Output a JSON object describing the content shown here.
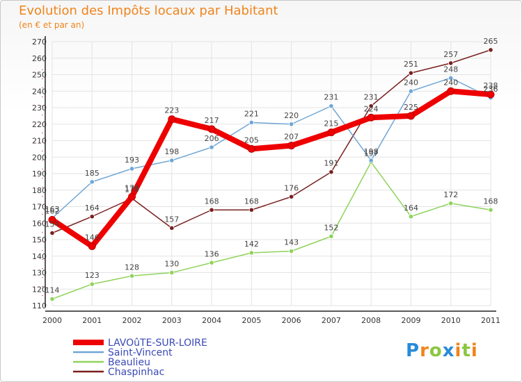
{
  "header": {
    "title": "Evolution des Impôts locaux par Habitant",
    "subtitle": "(en € et par an)"
  },
  "logo": {
    "text": "Proxiti",
    "letters": [
      "P",
      "r",
      "o",
      "x",
      "i",
      "t",
      "i"
    ],
    "colors": [
      "#2a8bd8",
      "#f0841c",
      "#8cc63f",
      "#2a8bd8",
      "#f0841c",
      "#8cc63f",
      "#f0841c"
    ]
  },
  "chart_data": {
    "type": "line",
    "title": "Evolution des Impôts locaux par Habitant",
    "subtitle": "(en € et par an)",
    "xlabel": "",
    "ylabel": "",
    "x": [
      "2000",
      "2001",
      "2002",
      "2003",
      "2004",
      "2005",
      "2006",
      "2007",
      "2008",
      "2009",
      "2010",
      "2011"
    ],
    "ylim": [
      110,
      270
    ],
    "yticks": [
      110,
      120,
      130,
      140,
      150,
      160,
      170,
      180,
      190,
      200,
      210,
      220,
      230,
      240,
      250,
      260,
      270
    ],
    "grid": true,
    "legend_position": "bottom-left",
    "series": [
      {
        "name": "Chaspinhac",
        "color": "#7a1f1f",
        "values": [
          154,
          164,
          175,
          157,
          168,
          168,
          176,
          191,
          231,
          251,
          257,
          265
        ]
      },
      {
        "name": "Beaulieu",
        "color": "#8fd35b",
        "values": [
          114,
          123,
          128,
          130,
          136,
          142,
          143,
          152,
          197,
          164,
          172,
          168
        ]
      },
      {
        "name": "Saint-Vincent",
        "color": "#6fa6d6",
        "values": [
          163,
          185,
          193,
          198,
          206,
          221,
          220,
          231,
          198,
          240,
          248,
          236
        ]
      },
      {
        "name": "LAVOûTE-SUR-LOIRE",
        "color": "#ee0000",
        "values": [
          162,
          146,
          176,
          223,
          217,
          205,
          207,
          215,
          224,
          225,
          240,
          238
        ]
      }
    ]
  }
}
